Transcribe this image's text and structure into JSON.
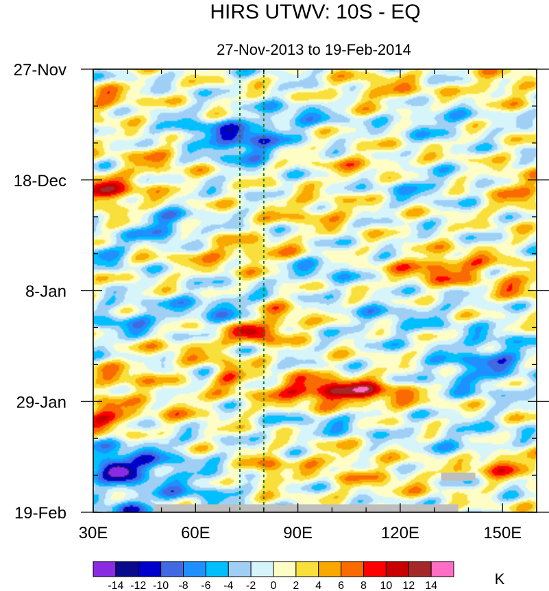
{
  "chart_data": {
    "type": "heatmap",
    "title": "HIRS UTWV: 10S - EQ",
    "subtitle": "27-Nov-2013 to 19-Feb-2014",
    "x_axis": {
      "range": [
        30,
        160
      ],
      "ticks": [
        {
          "value": 30,
          "label": "30E"
        },
        {
          "value": 60,
          "label": "60E"
        },
        {
          "value": 90,
          "label": "90E"
        },
        {
          "value": 120,
          "label": "120E"
        },
        {
          "value": 150,
          "label": "150E"
        }
      ],
      "minor_step": 10
    },
    "y_axis": {
      "range_days": [
        0,
        84
      ],
      "ticks": [
        {
          "value": 0,
          "label": "27-Nov"
        },
        {
          "value": 21,
          "label": "18-Dec"
        },
        {
          "value": 42,
          "label": "8-Jan"
        },
        {
          "value": 63,
          "label": "29-Jan"
        },
        {
          "value": 84,
          "label": "19-Feb"
        }
      ],
      "minor_step": 7
    },
    "reference_lines_lon": [
      73,
      80
    ],
    "colorbar": {
      "unit": "K",
      "levels": [
        -14,
        -12,
        -10,
        -8,
        -6,
        -4,
        -2,
        0,
        2,
        4,
        6,
        8,
        10,
        12,
        14
      ],
      "labels": [
        "-14",
        "-12",
        "-10",
        "-8",
        "-6",
        "-4",
        "-2",
        "0",
        "2",
        "4",
        "6",
        "8",
        "10",
        "12",
        "14"
      ],
      "colors": [
        "#8a2be2",
        "#0a0a8c",
        "#0000cd",
        "#4169e1",
        "#1e90ff",
        "#00bfff",
        "#a0cff5",
        "#d6f5fb",
        "#fffdc6",
        "#f9df3c",
        "#f9a800",
        "#f96a00",
        "#ff0000",
        "#c80000",
        "#a42828",
        "#ff6ec4"
      ]
    },
    "missing_color": "#bebebe",
    "missing_regions": [
      {
        "lon": [
          48,
          137
        ],
        "day": [
          82.5,
          84
        ]
      },
      {
        "lon": [
          132,
          142
        ],
        "day": [
          76.5,
          78
        ]
      }
    ],
    "features": [
      {
        "lon": 34,
        "day": 6,
        "value": 5,
        "sx": 6,
        "sy": 2
      },
      {
        "lon": 115,
        "day": 4,
        "value": 4,
        "sx": 10,
        "sy": 2
      },
      {
        "lon": 150,
        "day": 3,
        "value": 4,
        "sx": 6,
        "sy": 2
      },
      {
        "lon": 75,
        "day": 14,
        "value": -9,
        "sx": 7,
        "sy": 2.5
      },
      {
        "lon": 60,
        "day": 12,
        "value": -5,
        "sx": 10,
        "sy": 2
      },
      {
        "lon": 90,
        "day": 9,
        "value": -4,
        "sx": 9,
        "sy": 2
      },
      {
        "lon": 130,
        "day": 10,
        "value": -4,
        "sx": 8,
        "sy": 2
      },
      {
        "lon": 48,
        "day": 16,
        "value": 4,
        "sx": 6,
        "sy": 3
      },
      {
        "lon": 110,
        "day": 18,
        "value": 3,
        "sx": 10,
        "sy": 2
      },
      {
        "lon": 32,
        "day": 23,
        "value": 8,
        "sx": 4,
        "sy": 1.8
      },
      {
        "lon": 40,
        "day": 24,
        "value": 4,
        "sx": 7,
        "sy": 3
      },
      {
        "lon": 95,
        "day": 27,
        "value": 4,
        "sx": 9,
        "sy": 2
      },
      {
        "lon": 125,
        "day": 22,
        "value": -4,
        "sx": 8,
        "sy": 2
      },
      {
        "lon": 155,
        "day": 23,
        "value": 5,
        "sx": 5,
        "sy": 3
      },
      {
        "lon": 50,
        "day": 30,
        "value": -7,
        "sx": 6,
        "sy": 2.5
      },
      {
        "lon": 62,
        "day": 35,
        "value": 3,
        "sx": 10,
        "sy": 2
      },
      {
        "lon": 80,
        "day": 35,
        "value": 4,
        "sx": 8,
        "sy": 2
      },
      {
        "lon": 130,
        "day": 38,
        "value": 7,
        "sx": 8,
        "sy": 2
      },
      {
        "lon": 143,
        "day": 37,
        "value": 3,
        "sx": 8,
        "sy": 2
      },
      {
        "lon": 155,
        "day": 41,
        "value": 5,
        "sx": 5,
        "sy": 2
      },
      {
        "lon": 34,
        "day": 35,
        "value": -5,
        "sx": 4,
        "sy": 2
      },
      {
        "lon": 95,
        "day": 38,
        "value": -4,
        "sx": 8,
        "sy": 2
      },
      {
        "lon": 68,
        "day": 45,
        "value": -5,
        "sx": 12,
        "sy": 2
      },
      {
        "lon": 120,
        "day": 47,
        "value": -3,
        "sx": 12,
        "sy": 3
      },
      {
        "lon": 40,
        "day": 48,
        "value": -5,
        "sx": 8,
        "sy": 2
      },
      {
        "lon": 84,
        "day": 47,
        "value": 6,
        "sx": 6,
        "sy": 2.5
      },
      {
        "lon": 77,
        "day": 50,
        "value": 10,
        "sx": 4,
        "sy": 1.2
      },
      {
        "lon": 60,
        "day": 53,
        "value": 3,
        "sx": 10,
        "sy": 2
      },
      {
        "lon": 148,
        "day": 54,
        "value": -5,
        "sx": 8,
        "sy": 3
      },
      {
        "lon": 38,
        "day": 59,
        "value": 5,
        "sx": 7,
        "sy": 2
      },
      {
        "lon": 70,
        "day": 58,
        "value": 8,
        "sx": 3,
        "sy": 1.5
      },
      {
        "lon": 98,
        "day": 61,
        "value": 11,
        "sx": 12,
        "sy": 1.8
      },
      {
        "lon": 115,
        "day": 62,
        "value": 4,
        "sx": 10,
        "sy": 2
      },
      {
        "lon": 140,
        "day": 58,
        "value": -4,
        "sx": 10,
        "sy": 3
      },
      {
        "lon": 34,
        "day": 66,
        "value": 9,
        "sx": 5,
        "sy": 2
      },
      {
        "lon": 55,
        "day": 64,
        "value": 3,
        "sx": 8,
        "sy": 2
      },
      {
        "lon": 100,
        "day": 67,
        "value": -3,
        "sx": 12,
        "sy": 2
      },
      {
        "lon": 40,
        "day": 75,
        "value": -8,
        "sx": 12,
        "sy": 3
      },
      {
        "lon": 37,
        "day": 76,
        "value": -12,
        "sx": 3,
        "sy": 1
      },
      {
        "lon": 81,
        "day": 76,
        "value": 6,
        "sx": 4,
        "sy": 1.8
      },
      {
        "lon": 100,
        "day": 74,
        "value": 3,
        "sx": 8,
        "sy": 2
      },
      {
        "lon": 150,
        "day": 75,
        "value": 8,
        "sx": 6,
        "sy": 1.5
      },
      {
        "lon": 115,
        "day": 78,
        "value": 3,
        "sx": 10,
        "sy": 2
      },
      {
        "lon": 60,
        "day": 80,
        "value": -4,
        "sx": 10,
        "sy": 2
      },
      {
        "lon": 40,
        "day": 83,
        "value": -9,
        "sx": 5,
        "sy": 1
      },
      {
        "lon": 140,
        "day": 70,
        "value": -3,
        "sx": 10,
        "sy": 2
      }
    ]
  }
}
